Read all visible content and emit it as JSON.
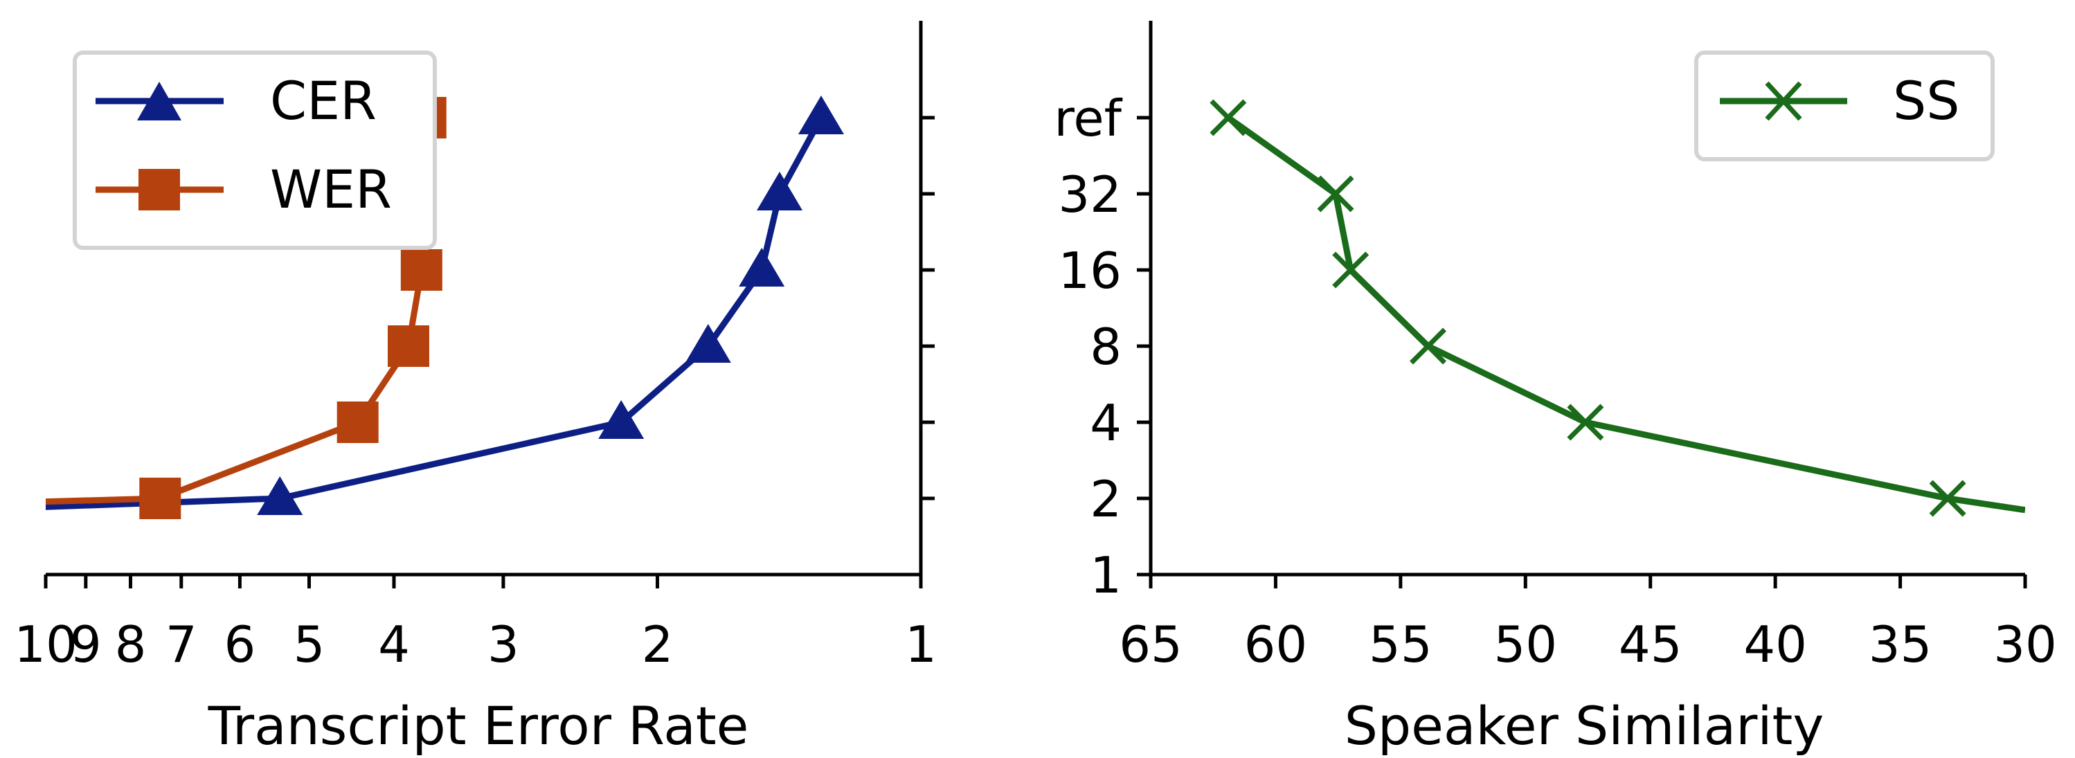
{
  "chart_data": [
    {
      "type": "line",
      "xlabel": "Transcript Error Rate",
      "ylabel": "",
      "x_scale": "log",
      "x_reversed": true,
      "xlim": [
        10,
        1
      ],
      "xticks": [
        10,
        9,
        8,
        7,
        6,
        5,
        4,
        3,
        2,
        1
      ],
      "y_scale": "log2",
      "y_categories": [
        "2",
        "4",
        "8",
        "16",
        "32",
        "ref"
      ],
      "yticks_labelled": false,
      "legend_position": "top-left",
      "grid": false,
      "series": [
        {
          "name": "CER",
          "marker": "triangle",
          "color": "#0d1f85",
          "points": [
            {
              "y": "1.8",
              "x": 12.5
            },
            {
              "y": "2",
              "x": 5.4
            },
            {
              "y": "4",
              "x": 2.2
            },
            {
              "y": "8",
              "x": 1.75
            },
            {
              "y": "16",
              "x": 1.52
            },
            {
              "y": "32",
              "x": 1.45
            },
            {
              "y": "ref",
              "x": 1.3
            }
          ]
        },
        {
          "name": "WER",
          "marker": "square",
          "color": "#b5420e",
          "points": [
            {
              "y": "1.9",
              "x": 12.5
            },
            {
              "y": "2",
              "x": 7.4
            },
            {
              "y": "4",
              "x": 4.4
            },
            {
              "y": "8",
              "x": 3.85
            },
            {
              "y": "16",
              "x": 3.72
            },
            {
              "y": "32",
              "x": 3.88
            },
            {
              "y": "ref",
              "x": 3.68
            }
          ]
        }
      ]
    },
    {
      "type": "line",
      "xlabel": "Speaker Similarity",
      "ylabel": "",
      "x_reversed": true,
      "xlim": [
        65,
        30
      ],
      "xticks": [
        65,
        60,
        55,
        50,
        45,
        40,
        35,
        30
      ],
      "y_scale": "log2",
      "y_tick_labels": [
        "1",
        "2",
        "4",
        "8",
        "16",
        "32",
        "ref"
      ],
      "legend_position": "top-right",
      "grid": false,
      "series": [
        {
          "name": "SS",
          "marker": "x",
          "color": "#1a6b1a",
          "points": [
            {
              "y": "ref",
              "x": 61.9
            },
            {
              "y": "32",
              "x": 57.6
            },
            {
              "y": "16",
              "x": 57.0
            },
            {
              "y": "8",
              "x": 53.9
            },
            {
              "y": "4",
              "x": 47.6
            },
            {
              "y": "2",
              "x": 33.1
            },
            {
              "y": "1.8",
              "x": 30.0
            }
          ]
        }
      ]
    }
  ]
}
